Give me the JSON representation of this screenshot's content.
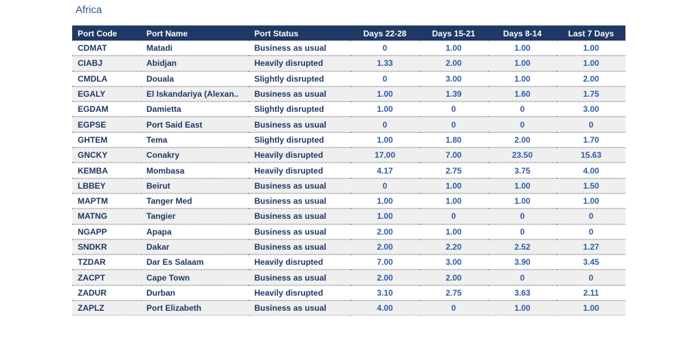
{
  "title": "Africa",
  "colors": {
    "header_bg": "#1F3864",
    "header_text": "#FFFFFF",
    "row_text": "#1F3864",
    "value_text": "#2E5DA6",
    "alt_row_bg": "#EFEFEF",
    "dotted_border": "#A3A3A3",
    "title_text": "#2E5496"
  },
  "table": {
    "columns": [
      {
        "label": "Port Code",
        "align": "left"
      },
      {
        "label": "Port Name",
        "align": "left"
      },
      {
        "label": "Port Status",
        "align": "left"
      },
      {
        "label": "Days 22-28",
        "align": "center"
      },
      {
        "label": "Days 15-21",
        "align": "center"
      },
      {
        "label": "Days 8-14",
        "align": "center"
      },
      {
        "label": "Last 7 Days",
        "align": "center"
      }
    ],
    "rows": [
      [
        "CDMAT",
        "Matadi",
        "Business as usual",
        "0",
        "1.00",
        "1.00",
        "1.00"
      ],
      [
        "CIABJ",
        "Abidjan",
        "Heavily disrupted",
        "1.33",
        "2.00",
        "1.00",
        "1.00"
      ],
      [
        "CMDLA",
        "Douala",
        "Slightly disrupted",
        "0",
        "3.00",
        "1.00",
        "2.00"
      ],
      [
        "EGALY",
        "El Iskandariya (Alexan..",
        "Business as usual",
        "1.00",
        "1.39",
        "1.60",
        "1.75"
      ],
      [
        "EGDAM",
        "Damietta",
        "Slightly disrupted",
        "1.00",
        "0",
        "0",
        "3.00"
      ],
      [
        "EGPSE",
        "Port Said East",
        "Business as usual",
        "0",
        "0",
        "0",
        "0"
      ],
      [
        "GHTEM",
        "Tema",
        "Slightly disrupted",
        "1.00",
        "1.80",
        "2.00",
        "1.70"
      ],
      [
        "GNCKY",
        "Conakry",
        "Heavily disrupted",
        "17.00",
        "7.00",
        "23.50",
        "15.63"
      ],
      [
        "KEMBA",
        "Mombasa",
        "Heavily disrupted",
        "4.17",
        "2.75",
        "3.75",
        "4.00"
      ],
      [
        "LBBEY",
        "Beirut",
        "Business as usual",
        "0",
        "1.00",
        "1.00",
        "1.50"
      ],
      [
        "MAPTM",
        "Tanger Med",
        "Business as usual",
        "1.00",
        "1.00",
        "1.00",
        "1.00"
      ],
      [
        "MATNG",
        "Tangier",
        "Business as usual",
        "1.00",
        "0",
        "0",
        "0"
      ],
      [
        "NGAPP",
        "Apapa",
        "Business as usual",
        "2.00",
        "1.00",
        "0",
        "0"
      ],
      [
        "SNDKR",
        "Dakar",
        "Business as usual",
        "2.00",
        "2.20",
        "2.52",
        "1.27"
      ],
      [
        "TZDAR",
        "Dar Es Salaam",
        "Heavily disrupted",
        "7.00",
        "3.00",
        "3.90",
        "3.45"
      ],
      [
        "ZACPT",
        "Cape Town",
        "Business as usual",
        "2.00",
        "2.00",
        "0",
        "0"
      ],
      [
        "ZADUR",
        "Durban",
        "Heavily disrupted",
        "3.10",
        "2.75",
        "3.63",
        "2.11"
      ],
      [
        "ZAPLZ",
        "Port Elizabeth",
        "Business as usual",
        "4.00",
        "0",
        "1.00",
        "1.00"
      ]
    ]
  }
}
